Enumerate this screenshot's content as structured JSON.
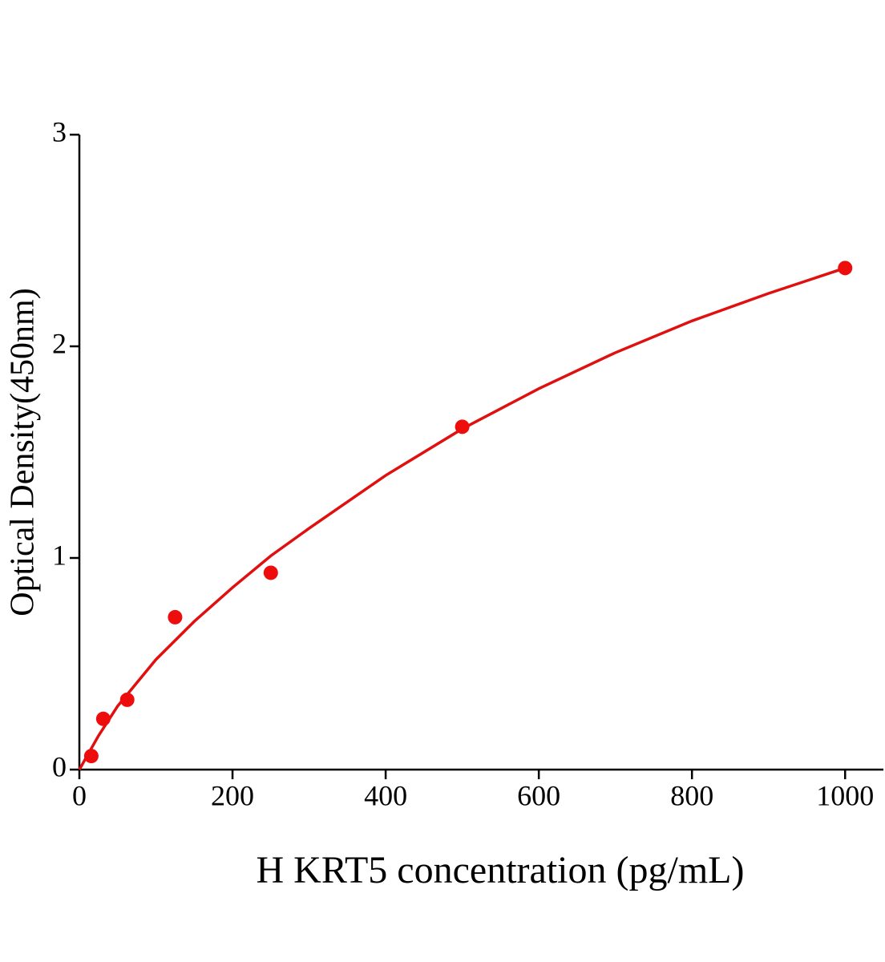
{
  "chart_data": {
    "type": "scatter",
    "x_label": "H KRT5 concentration (pg/mL)",
    "y_label": "Optical Density(450nm)",
    "x": [
      15.6,
      31.25,
      62.5,
      125,
      250,
      500,
      1000
    ],
    "values": [
      0.064,
      0.24,
      0.33,
      0.72,
      0.93,
      1.62,
      2.37
    ],
    "color": "#ee0d0d",
    "fit": {
      "type": "line",
      "color": "#e01010",
      "x": [
        0,
        25,
        50,
        100,
        150,
        200,
        250,
        300,
        400,
        500,
        600,
        700,
        800,
        900,
        1000
      ],
      "values": [
        0,
        0.16,
        0.3,
        0.52,
        0.7,
        0.86,
        1.01,
        1.14,
        1.39,
        1.61,
        1.8,
        1.97,
        2.12,
        2.25,
        2.37
      ]
    },
    "xlim": [
      0,
      1050
    ],
    "ylim": [
      0,
      3
    ],
    "xticks": [
      0,
      200,
      400,
      600,
      800,
      1000
    ],
    "yticks": [
      0,
      1,
      2,
      3
    ],
    "grid": false
  }
}
